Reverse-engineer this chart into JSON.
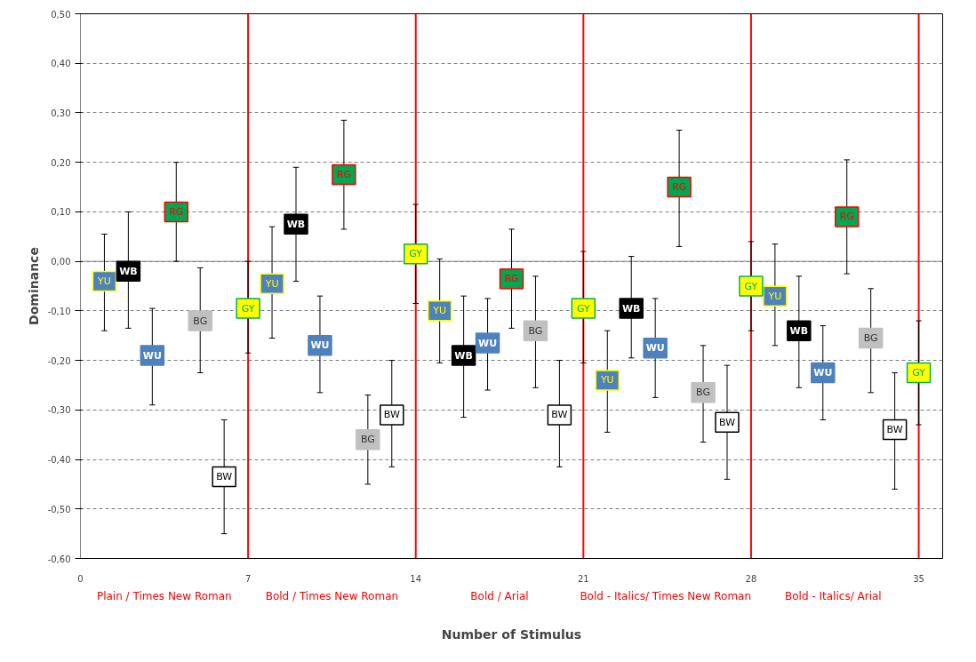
{
  "chart_data": {
    "type": "scatter",
    "xlabel": "Number of Stimulus",
    "ylabel": "Dominance",
    "marker": "square",
    "grid": "y",
    "legend": false,
    "xlim": [
      0,
      36
    ],
    "xticks": [
      0,
      7,
      14,
      21,
      28,
      35
    ],
    "ylim": [
      -0.6,
      0.5
    ],
    "yticks": [
      {
        "value": -0.6,
        "label": "-0,60"
      },
      {
        "value": -0.5,
        "label": "-0,50"
      },
      {
        "value": -0.4,
        "label": "-0,40"
      },
      {
        "value": -0.3,
        "label": "-0,30"
      },
      {
        "value": -0.2,
        "label": "-0,20"
      },
      {
        "value": -0.1,
        "label": "-0,10"
      },
      {
        "value": 0,
        "label": "0,00"
      },
      {
        "value": 0.1,
        "label": "0,10"
      },
      {
        "value": 0.2,
        "label": "0,20"
      },
      {
        "value": 0.3,
        "label": "0,30"
      },
      {
        "value": 0.4,
        "label": "0,40"
      },
      {
        "value": 0.5,
        "label": "0,50"
      }
    ],
    "series": [
      {
        "name": "YU",
        "color": "#4f81bd",
        "x": [
          1,
          8,
          15,
          22,
          29
        ],
        "values": [
          -0.04,
          -0.045,
          -0.1,
          -0.24,
          -0.07
        ],
        "errors": [
          [
            -0.14,
            0.055
          ],
          [
            -0.155,
            0.07
          ],
          [
            -0.205,
            0.005
          ],
          [
            -0.345,
            -0.14
          ],
          [
            -0.17,
            0.035
          ]
        ]
      },
      {
        "name": "WB",
        "color": "#000000",
        "x": [
          2,
          9,
          16,
          23,
          30
        ],
        "values": [
          -0.02,
          0.075,
          -0.19,
          -0.095,
          -0.14
        ],
        "errors": [
          [
            -0.135,
            0.1
          ],
          [
            -0.04,
            0.19
          ],
          [
            -0.315,
            -0.07
          ],
          [
            -0.195,
            0.01
          ],
          [
            -0.255,
            -0.03
          ]
        ]
      },
      {
        "name": "WU",
        "color": "#4f81bd",
        "x": [
          3,
          10,
          17,
          24,
          31
        ],
        "values": [
          -0.19,
          -0.17,
          -0.165,
          -0.175,
          -0.225
        ],
        "errors": [
          [
            -0.29,
            -0.095
          ],
          [
            -0.265,
            -0.07
          ],
          [
            -0.26,
            -0.075
          ],
          [
            -0.275,
            -0.075
          ],
          [
            -0.32,
            -0.13
          ]
        ]
      },
      {
        "name": "RG",
        "color": "#00a651",
        "x": [
          4,
          11,
          18,
          25,
          32
        ],
        "values": [
          0.1,
          0.175,
          -0.035,
          0.15,
          0.09
        ],
        "errors": [
          [
            0.0,
            0.2
          ],
          [
            0.065,
            0.285
          ],
          [
            -0.135,
            0.065
          ],
          [
            0.03,
            0.265
          ],
          [
            -0.025,
            0.205
          ]
        ]
      },
      {
        "name": "BG",
        "color": "#c0c0c0",
        "x": [
          5,
          12,
          19,
          26,
          33
        ],
        "values": [
          -0.12,
          -0.36,
          -0.14,
          -0.265,
          -0.155
        ],
        "errors": [
          [
            -0.225,
            -0.013
          ],
          [
            -0.45,
            -0.27
          ],
          [
            -0.255,
            -0.03
          ],
          [
            -0.365,
            -0.17
          ],
          [
            -0.265,
            -0.055
          ]
        ]
      },
      {
        "name": "BW",
        "color": "#ffffff",
        "x": [
          6,
          13,
          20,
          27,
          34
        ],
        "values": [
          -0.435,
          -0.31,
          -0.31,
          -0.325,
          -0.34
        ],
        "errors": [
          [
            -0.55,
            -0.32
          ],
          [
            -0.415,
            -0.2
          ],
          [
            -0.415,
            -0.2
          ],
          [
            -0.44,
            -0.21
          ],
          [
            -0.46,
            -0.225
          ]
        ]
      },
      {
        "name": "GY",
        "color": "#ffff00",
        "x": [
          7,
          14,
          21,
          28,
          35
        ],
        "values": [
          -0.095,
          0.015,
          -0.095,
          -0.05,
          -0.225
        ],
        "errors": [
          [
            -0.185,
            0.0
          ],
          [
            -0.085,
            0.115
          ],
          [
            -0.205,
            0.02
          ],
          [
            -0.14,
            0.04
          ],
          [
            -0.33,
            -0.12
          ]
        ]
      }
    ],
    "ref_lines": [
      {
        "axis": "y",
        "value": 0,
        "color": "#808080",
        "line_style": "solid"
      },
      {
        "axis": "x",
        "value": 7,
        "color": "#ff0000",
        "line_style": "solid"
      },
      {
        "axis": "x",
        "value": 14,
        "color": "#ff0000",
        "line_style": "solid"
      },
      {
        "axis": "x",
        "value": 21,
        "color": "#ff0000",
        "line_style": "solid"
      },
      {
        "axis": "x",
        "value": 28,
        "color": "#ff0000",
        "line_style": "solid"
      },
      {
        "axis": "x",
        "value": 35,
        "color": "#ff0000",
        "line_style": "solid"
      }
    ],
    "annotations": [
      "Plain / Times New Roman",
      "Bold / Times New Roman",
      "Bold / Arial",
      "Bold - Italics/  Times New Roman",
      "Bold - Italics/  Arial"
    ]
  }
}
